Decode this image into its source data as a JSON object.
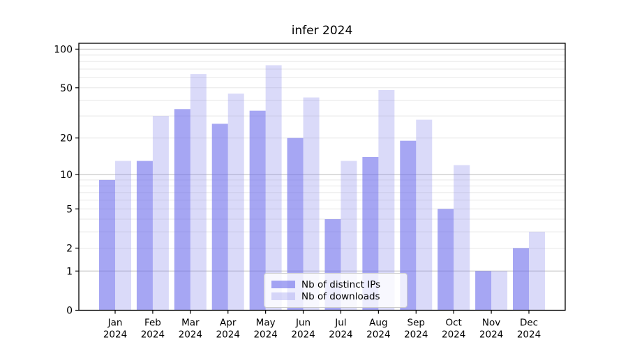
{
  "title": "infer 2024",
  "legend": {
    "entries": [
      {
        "label": "Nb of distinct IPs"
      },
      {
        "label": "Nb of downloads"
      }
    ]
  },
  "chart_data": {
    "type": "bar",
    "title": "infer 2024",
    "categories": [
      "Jan 2024",
      "Feb 2024",
      "Mar 2024",
      "Apr 2024",
      "May 2024",
      "Jun 2024",
      "Jul 2024",
      "Aug 2024",
      "Sep 2024",
      "Oct 2024",
      "Nov 2024",
      "Dec 2024"
    ],
    "series": [
      {
        "name": "Nb of distinct IPs",
        "color": "#a6a6f3",
        "fill_rgba": "rgba(107,107,235,0.6)",
        "values": [
          9,
          13,
          34,
          26,
          33,
          20,
          4,
          14,
          19,
          5,
          1,
          2
        ]
      },
      {
        "name": "Nb of downloads",
        "color": "#dadaf8",
        "fill_rgba": "rgba(132,132,235,0.3)",
        "values": [
          13,
          30,
          64,
          45,
          75,
          42,
          13,
          48,
          28,
          12,
          1,
          3
        ]
      }
    ],
    "xlabel": "",
    "ylabel": "",
    "yscale": "log1p",
    "ylim": [
      0,
      111
    ],
    "y_tick_labels": [
      "0",
      "1",
      "2",
      "5",
      "10",
      "20",
      "50",
      "100"
    ],
    "y_tick_values": [
      0,
      1,
      2,
      5,
      10,
      20,
      50,
      100
    ],
    "y_major_gridlines": [
      1,
      10,
      100
    ],
    "y_minor_gridlines": [
      2,
      3,
      4,
      5,
      6,
      7,
      8,
      9,
      20,
      30,
      40,
      50,
      60,
      70,
      80,
      90
    ],
    "grid": true,
    "legend_position": "lower center",
    "colors": {
      "bar_distinct_ips": "#a6a6f3",
      "bar_downloads": "#dadaf8",
      "grid_major": "#bbbbbb",
      "grid_minor": "#e7e7e7",
      "spine": "#000000",
      "text": "#000000"
    }
  }
}
